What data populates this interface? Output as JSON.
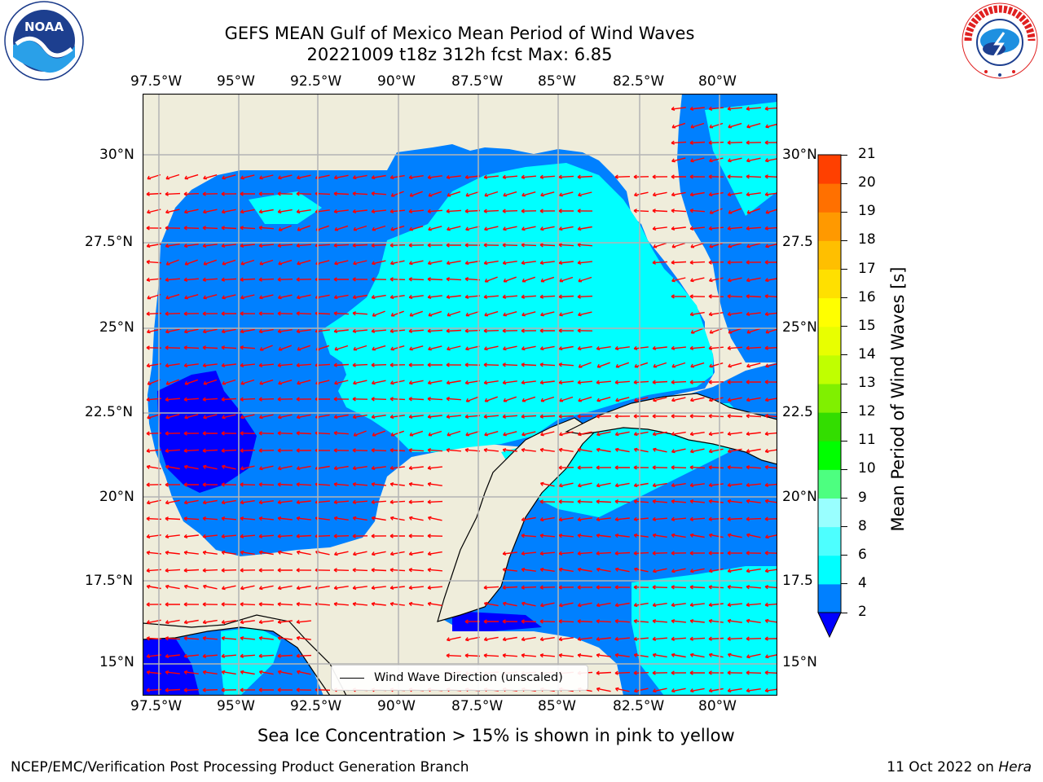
{
  "title": {
    "line1": "GEFS MEAN Gulf of Mexico Mean Period of Wind Waves",
    "line2": "20221009 t18z 312h fcst   Max: 6.85"
  },
  "logos": {
    "left": {
      "icon": "noaa-logo-icon",
      "text": "NOAA",
      "ring_text": "NATIONAL OCEANIC AND ATMOSPHERIC ADMINISTRATION · U.S. DEPARTMENT OF COMMERCE"
    },
    "right": {
      "icon": "nws-logo-icon",
      "ring_text": "NATIONAL WEATHER SERVICE"
    }
  },
  "map": {
    "lon_ticks": [
      "97.5°W",
      "95°W",
      "92.5°W",
      "90°W",
      "87.5°W",
      "85°W",
      "82.5°W",
      "80°W"
    ],
    "lat_ticks_left": [
      "30°N",
      "27.5°N",
      "25°N",
      "22.5°N",
      "20°N",
      "17.5°N",
      "15°N"
    ],
    "lat_ticks_right": [
      "30°N",
      "27.5",
      "25°N",
      "22.5",
      "20°N",
      "17.5",
      "15°N"
    ],
    "legend_label": "Wind Wave Direction (unscaled)",
    "colors": {
      "land": "#efeddb",
      "ocean_low": "#0000ff",
      "ocean_2_4": "#0080ff",
      "ocean_4_6": "#00ffff",
      "arrow": "#ff0000",
      "grid": "#b4b4b4"
    }
  },
  "colorbar": {
    "label": "Mean Period of Wind Waves [s]",
    "ticks": [
      "2",
      "4",
      "6",
      "8",
      "9",
      "10",
      "11",
      "12",
      "13",
      "14",
      "15",
      "16",
      "17",
      "18",
      "19",
      "20",
      "21"
    ],
    "colors": [
      "#0080ff",
      "#00ffff",
      "#4dffff",
      "#99ffff",
      "#4dff80",
      "#00ff00",
      "#33dd00",
      "#80f000",
      "#c0ff00",
      "#e8ff00",
      "#ffff00",
      "#ffe000",
      "#ffbf00",
      "#ff9900",
      "#ff7000",
      "#ff4000",
      "#ff0000"
    ],
    "extend_color": "#0000ff"
  },
  "note": "Sea Ice Concentration > 15% is shown in pink to yellow",
  "footer": {
    "left": "NCEP/EMC/Verification Post Processing Product Generation Branch",
    "right_date": "11 Oct 2022 on ",
    "right_host": "Hera"
  }
}
